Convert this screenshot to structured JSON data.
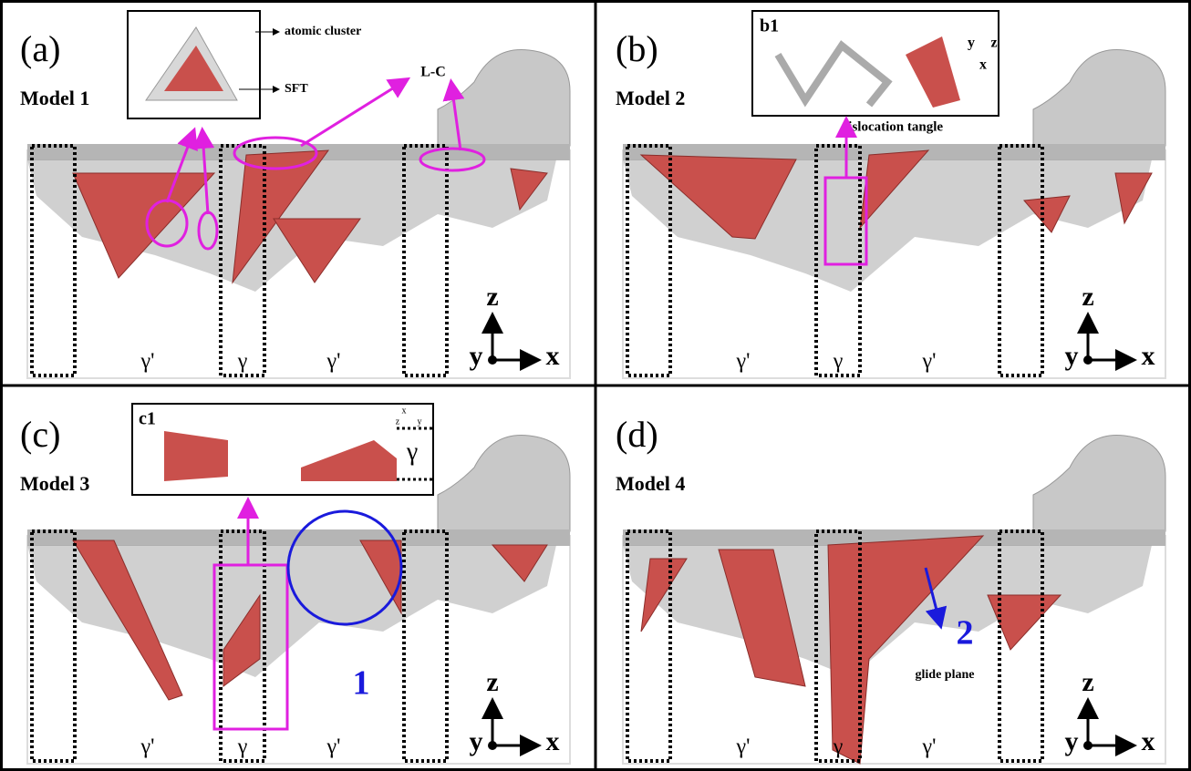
{
  "panels": [
    {
      "label": "(a)",
      "model": "Model 1",
      "phases": [
        "γ'",
        "γ",
        "γ'"
      ],
      "axes": [
        "z",
        "y",
        "x"
      ],
      "inset_notes": [
        "atomic cluster",
        "SFT"
      ],
      "notes": [
        "L-C"
      ]
    },
    {
      "label": "(b)",
      "model": "Model 2",
      "phases": [
        "γ'",
        "γ",
        "γ'"
      ],
      "axes": [
        "z",
        "y",
        "x"
      ],
      "inset_label": "b1",
      "inset_axes": [
        "y",
        "z",
        "x"
      ],
      "notes": [
        "dislocation tangle"
      ]
    },
    {
      "label": "(c)",
      "model": "Model 3",
      "phases": [
        "γ'",
        "γ",
        "γ'"
      ],
      "axes": [
        "z",
        "y",
        "x"
      ],
      "inset_label": "c1",
      "inset_axes": [
        "x",
        "z",
        "y"
      ],
      "inset_phase": "γ",
      "notes": [
        "1"
      ]
    },
    {
      "label": "(d)",
      "model": "Model 4",
      "phases": [
        "γ'",
        "γ",
        "γ'"
      ],
      "axes": [
        "z",
        "y",
        "x"
      ],
      "notes": [
        "2",
        "glide plane"
      ]
    }
  ]
}
